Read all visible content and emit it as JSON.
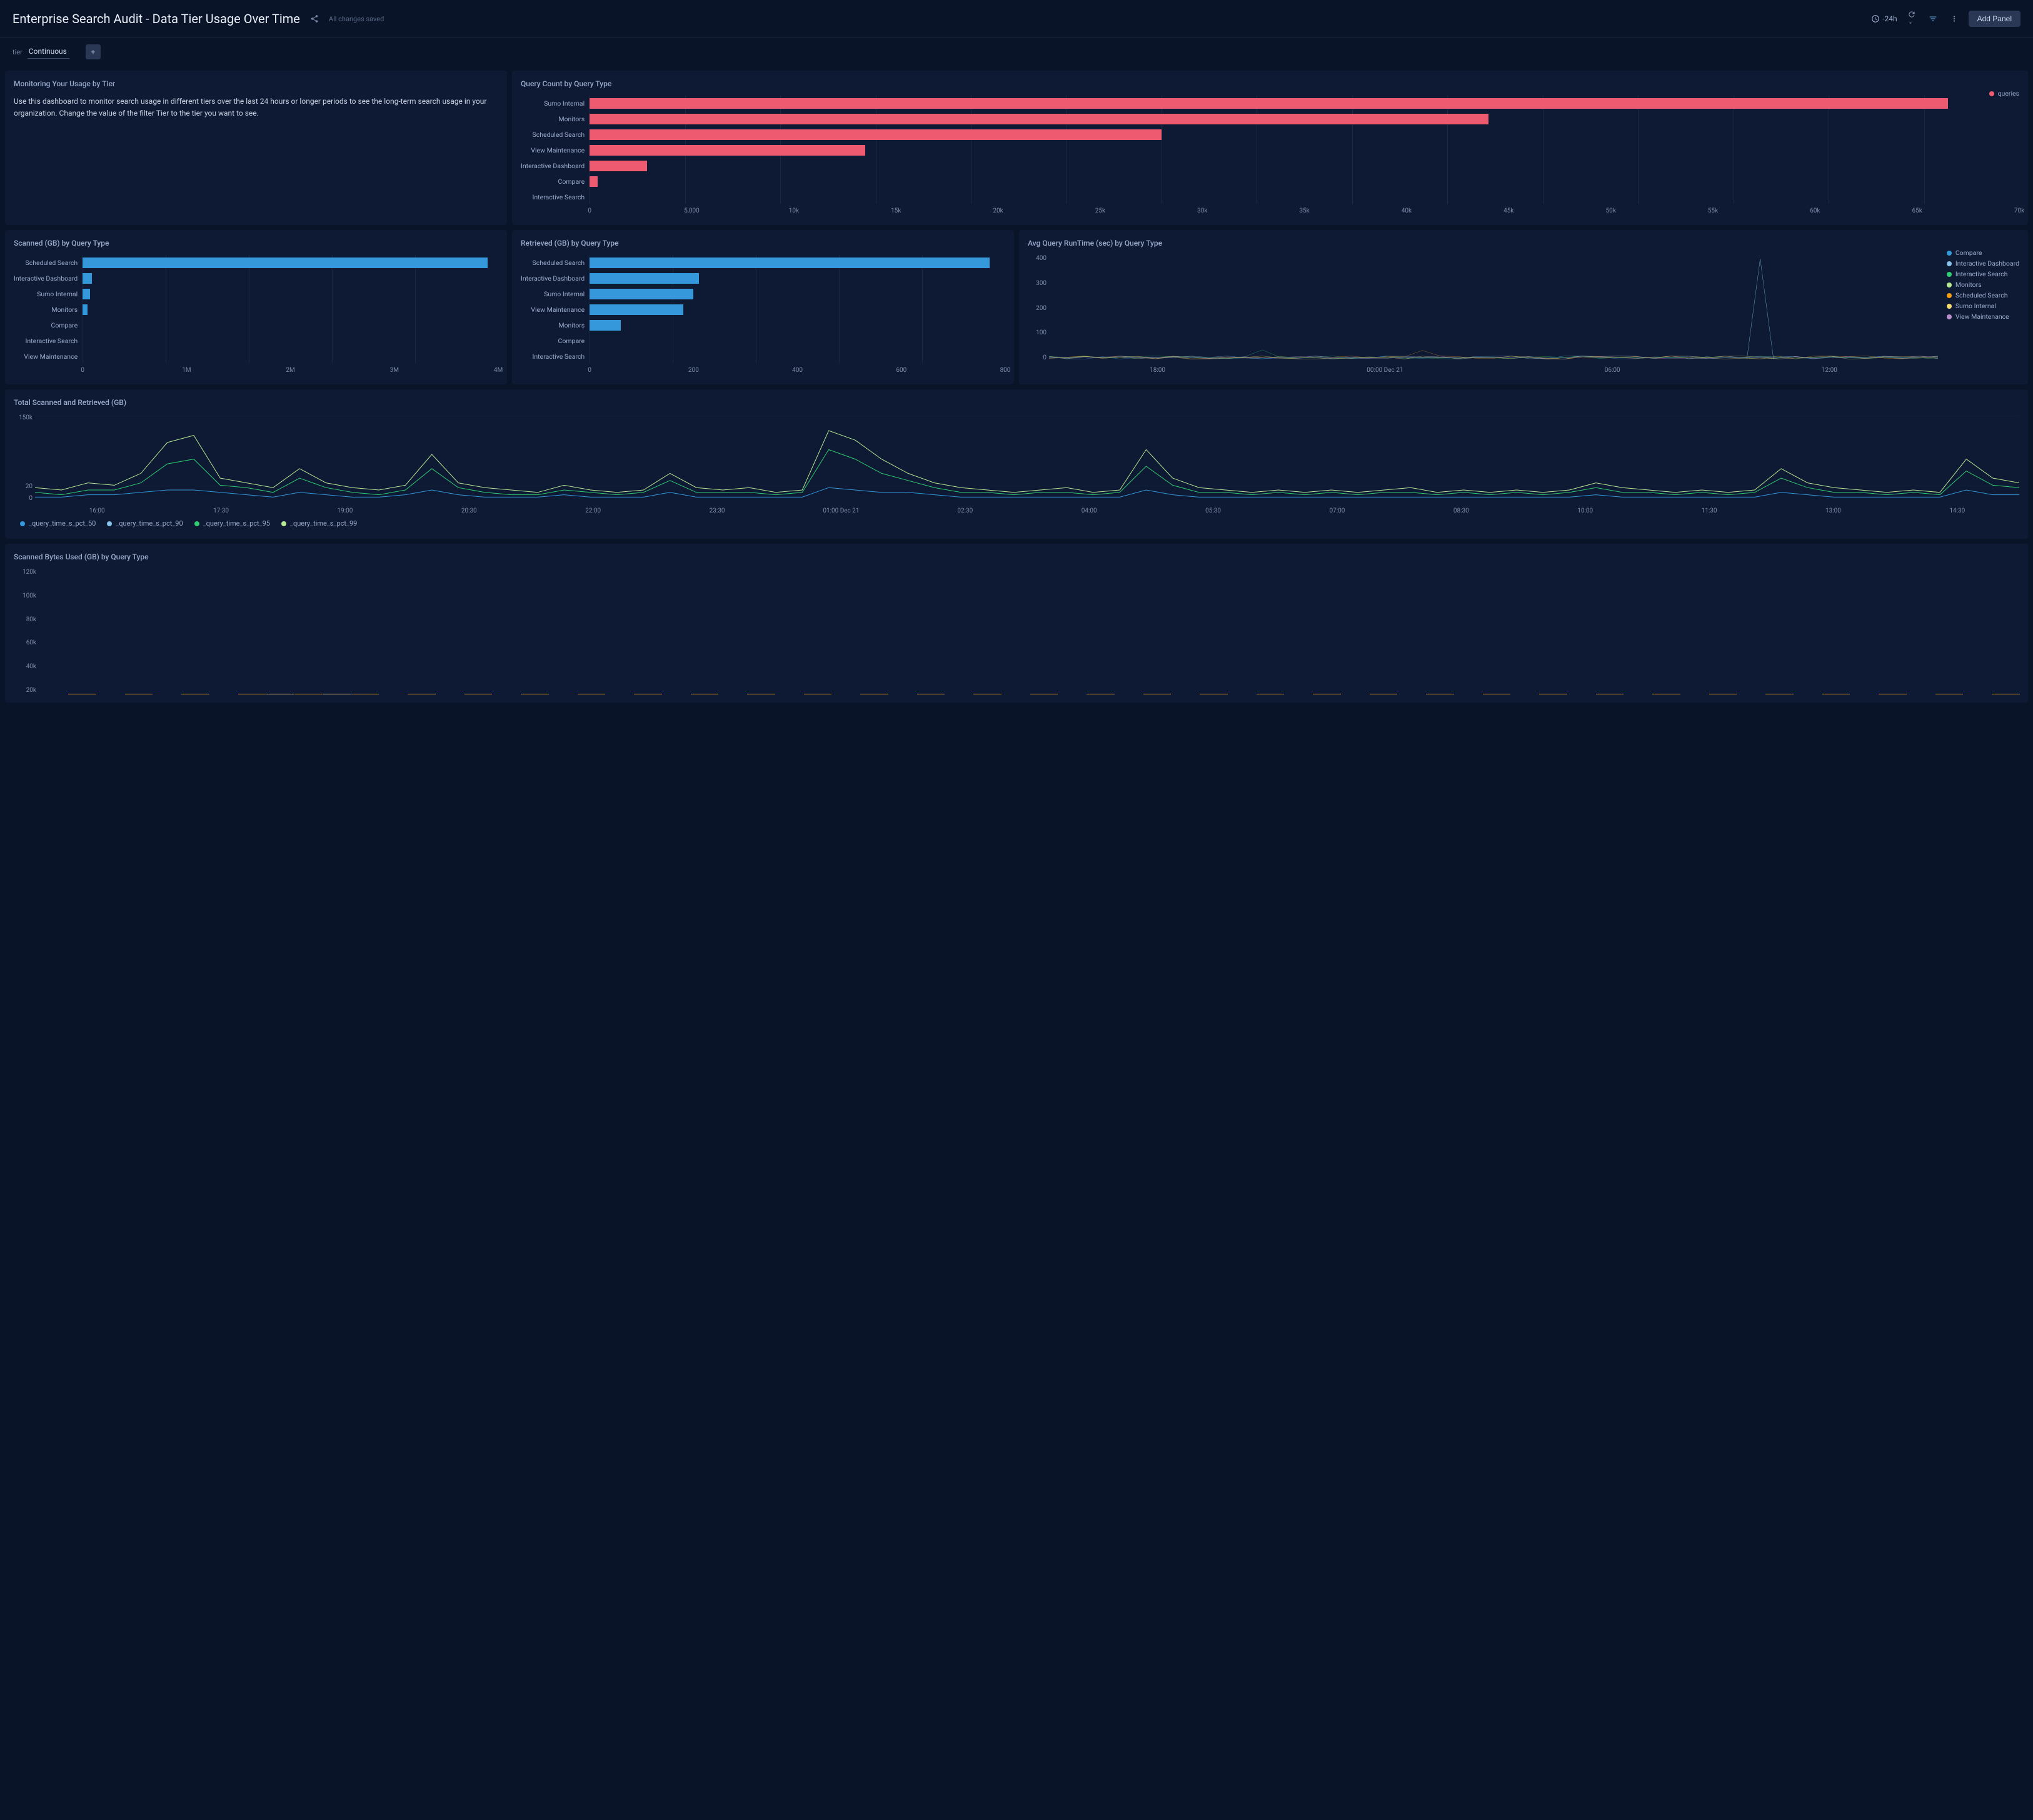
{
  "header": {
    "title": "Enterprise Search Audit - Data Tier Usage Over Time",
    "saved_status": "All changes saved",
    "time_range": "-24h",
    "add_panel_label": "Add Panel"
  },
  "filter": {
    "label": "tier",
    "value": "Continuous"
  },
  "panels": {
    "usage_text": {
      "title": "Monitoring Your Usage by Tier",
      "body": "Use this dashboard to monitor search usage in different tiers over the last 24 hours or longer periods to see the long-term search usage in your organization. Change the value of the filter Tier to the tier you want to see."
    },
    "query_count": {
      "title": "Query Count by Query Type",
      "type": "bar-horizontal",
      "categories": [
        "Sumo Internal",
        "Monitors",
        "Scheduled Search",
        "View Maintenance",
        "Interactive Dashboard",
        "Compare",
        "Interactive Search"
      ],
      "values": [
        66500,
        44000,
        28000,
        13500,
        2800,
        400,
        0
      ],
      "bar_color": "#ee5a6f",
      "xlim": [
        0,
        70000
      ],
      "xtick_step": 5000,
      "xticks": [
        "0",
        "5,000",
        "10k",
        "15k",
        "20k",
        "25k",
        "30k",
        "35k",
        "40k",
        "45k",
        "50k",
        "55k",
        "60k",
        "65k",
        "70k"
      ],
      "legend": [
        {
          "label": "queries",
          "color": "#ee5a6f"
        }
      ]
    },
    "scanned_gb": {
      "title": "Scanned (GB) by Query Type",
      "type": "bar-horizontal",
      "categories": [
        "Scheduled Search",
        "Interactive Dashboard",
        "Sumo Internal",
        "Monitors",
        "Compare",
        "Interactive Search",
        "View Maintenance"
      ],
      "values": [
        3900000,
        90000,
        70000,
        50000,
        0,
        0,
        0
      ],
      "bar_color": "#3498db",
      "xlim": [
        0,
        4000000
      ],
      "xticks": [
        "0",
        "1M",
        "2M",
        "3M",
        "4M"
      ]
    },
    "retrieved_gb": {
      "title": "Retrieved (GB) by Query Type",
      "type": "bar-horizontal",
      "categories": [
        "Scheduled Search",
        "Interactive Dashboard",
        "Sumo Internal",
        "View Maintenance",
        "Monitors",
        "Compare",
        "Interactive Search"
      ],
      "values": [
        770,
        210,
        200,
        180,
        60,
        0,
        0
      ],
      "bar_color": "#3498db",
      "xlim": [
        0,
        800
      ],
      "xticks": [
        "0",
        "200",
        "400",
        "600",
        "800"
      ]
    },
    "avg_runtime": {
      "title": "Avg Query RunTime (sec) by Query Type",
      "type": "line",
      "ylim": [
        0,
        400
      ],
      "yticks": [
        "0",
        "100",
        "200",
        "300",
        "400"
      ],
      "xticks": [
        "18:00",
        "00:00 Dec 21",
        "06:00",
        "12:00"
      ],
      "legend": [
        {
          "label": "Compare",
          "color": "#3498db"
        },
        {
          "label": "Interactive Dashboard",
          "color": "#85c1e9"
        },
        {
          "label": "Interactive Search",
          "color": "#2ecc71"
        },
        {
          "label": "Monitors",
          "color": "#b8e994"
        },
        {
          "label": "Scheduled Search",
          "color": "#f39c12"
        },
        {
          "label": "Sumo Internal",
          "color": "#f7dc6f"
        },
        {
          "label": "View Maintenance",
          "color": "#bb8fce"
        }
      ],
      "spike": {
        "x_pct": 80,
        "y_value": 385,
        "color": "#85c1e9"
      }
    },
    "total_scanned": {
      "title": "Total Scanned and Retrieved (GB)",
      "type": "line",
      "ylim": [
        0,
        150000
      ],
      "yticks": [
        "0",
        "20",
        "150k"
      ],
      "xticks": [
        "16:00",
        "17:30",
        "19:00",
        "20:30",
        "22:00",
        "23:30",
        "01:00 Dec 21",
        "02:30",
        "04:00",
        "05:30",
        "07:00",
        "08:30",
        "10:00",
        "11:30",
        "13:00",
        "14:30"
      ],
      "legend": [
        {
          "label": "_query_time_s_pct_50",
          "color": "#3498db"
        },
        {
          "label": "_query_time_s_pct_90",
          "color": "#85c1e9"
        },
        {
          "label": "_query_time_s_pct_95",
          "color": "#2ecc71"
        },
        {
          "label": "_query_time_s_pct_99",
          "color": "#b8e994"
        }
      ],
      "series_99": [
        6,
        5,
        8,
        7,
        12,
        25,
        28,
        10,
        8,
        6,
        14,
        8,
        6,
        5,
        7,
        20,
        8,
        6,
        5,
        4,
        7,
        5,
        4,
        5,
        12,
        6,
        5,
        6,
        4,
        5,
        30,
        26,
        18,
        12,
        8,
        6,
        5,
        4,
        5,
        6,
        4,
        5,
        22,
        10,
        6,
        5,
        4,
        5,
        4,
        5,
        4,
        5,
        6,
        4,
        5,
        4,
        5,
        4,
        5,
        8,
        6,
        5,
        4,
        5,
        4,
        5,
        14,
        8,
        6,
        5,
        4,
        5,
        4,
        18,
        10,
        8
      ],
      "series_95": [
        4,
        3,
        5,
        5,
        8,
        16,
        18,
        7,
        6,
        4,
        10,
        6,
        4,
        3,
        5,
        14,
        6,
        4,
        3,
        3,
        5,
        4,
        3,
        4,
        9,
        4,
        4,
        4,
        3,
        4,
        22,
        18,
        12,
        9,
        6,
        4,
        4,
        3,
        4,
        4,
        3,
        4,
        15,
        7,
        4,
        4,
        3,
        4,
        3,
        4,
        3,
        4,
        4,
        3,
        4,
        3,
        4,
        3,
        4,
        6,
        4,
        4,
        3,
        4,
        3,
        4,
        10,
        6,
        4,
        4,
        3,
        4,
        3,
        13,
        7,
        6
      ],
      "series_50": [
        2,
        2,
        3,
        3,
        4,
        5,
        5,
        4,
        3,
        2,
        4,
        3,
        2,
        2,
        3,
        5,
        3,
        2,
        2,
        2,
        3,
        2,
        2,
        2,
        4,
        2,
        2,
        2,
        2,
        2,
        6,
        5,
        4,
        4,
        3,
        2,
        2,
        2,
        2,
        2,
        2,
        2,
        5,
        3,
        2,
        2,
        2,
        2,
        2,
        2,
        2,
        2,
        2,
        2,
        2,
        2,
        2,
        2,
        2,
        3,
        2,
        2,
        2,
        2,
        2,
        2,
        4,
        3,
        2,
        2,
        2,
        2,
        2,
        5,
        3,
        3
      ]
    },
    "scanned_bytes": {
      "title": "Scanned Bytes Used (GB) by Query Type",
      "type": "bar-stacked",
      "ylim": [
        0,
        120000
      ],
      "yticks": [
        "20k",
        "40k",
        "60k",
        "80k",
        "100k",
        "120k"
      ],
      "colors": {
        "primary": "#f39c12",
        "light": "#f8c471",
        "blue": "#3498db"
      },
      "groups": [
        [
          16,
          4
        ],
        [
          108,
          3
        ],
        [
          16,
          4
        ],
        [
          108,
          3
        ],
        [
          15,
          4
        ],
        [
          108,
          3
        ],
        [
          14,
          4
        ],
        [
          108,
          3
        ],
        [
          28,
          52,
          12
        ],
        [
          112,
          4
        ],
        [
          28,
          66,
          12
        ],
        [
          108,
          3
        ],
        [
          30,
          38,
          10
        ],
        [
          108,
          3
        ],
        [
          14,
          4
        ],
        [
          108,
          3
        ],
        [
          15,
          4
        ],
        [
          110,
          3
        ],
        [
          14,
          4
        ],
        [
          108,
          3
        ],
        [
          14,
          4
        ],
        [
          108,
          3
        ],
        [
          14,
          4
        ],
        [
          110,
          3
        ],
        [
          15,
          4
        ],
        [
          108,
          3
        ],
        [
          16,
          4
        ],
        [
          108,
          3
        ],
        [
          14,
          4
        ],
        [
          108,
          3
        ],
        [
          16,
          4
        ],
        [
          108,
          3
        ],
        [
          14,
          4
        ],
        [
          108,
          3
        ],
        [
          28,
          4
        ],
        [
          108,
          3
        ],
        [
          15,
          4
        ],
        [
          110,
          3
        ],
        [
          14,
          4
        ],
        [
          82,
          3
        ],
        [
          14,
          4
        ],
        [
          48,
          3
        ],
        [
          14,
          4
        ],
        [
          110,
          3
        ],
        [
          15,
          4
        ],
        [
          108,
          3
        ],
        [
          14,
          4
        ],
        [
          108,
          3
        ],
        [
          16,
          4
        ],
        [
          108,
          3
        ],
        [
          14,
          4
        ],
        [
          110,
          3
        ],
        [
          15,
          4
        ],
        [
          108,
          3
        ],
        [
          14,
          4
        ],
        [
          108,
          3
        ],
        [
          14,
          4
        ],
        [
          108,
          3
        ],
        [
          14,
          4
        ],
        [
          110,
          3
        ],
        [
          16,
          4
        ],
        [
          108,
          3
        ],
        [
          14,
          4
        ],
        [
          108,
          3
        ],
        [
          15,
          4
        ],
        [
          108,
          3
        ],
        [
          14,
          4
        ],
        [
          108,
          3
        ],
        [
          14,
          4
        ],
        [
          108,
          3
        ]
      ]
    }
  }
}
